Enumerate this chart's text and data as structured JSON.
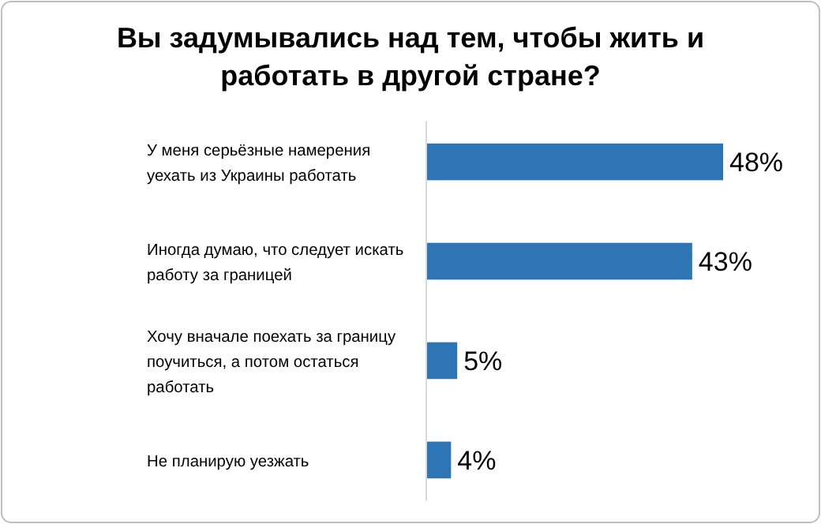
{
  "chart_data": {
    "type": "bar",
    "orientation": "horizontal",
    "title": "Вы задумывались над тем, чтобы жить и работать в другой стране?",
    "categories": [
      "У меня серьёзные намерения уехать из Украины работать",
      "Иногда думаю, что следует искать работу за границей",
      "Хочу вначале поехать за границу поучиться, а потом остаться работать",
      "Не планирую уезжать"
    ],
    "values": [
      48,
      43,
      5,
      4
    ],
    "value_labels": [
      "48%",
      "43%",
      "5%",
      "4%"
    ],
    "color": "#2e75b6"
  }
}
